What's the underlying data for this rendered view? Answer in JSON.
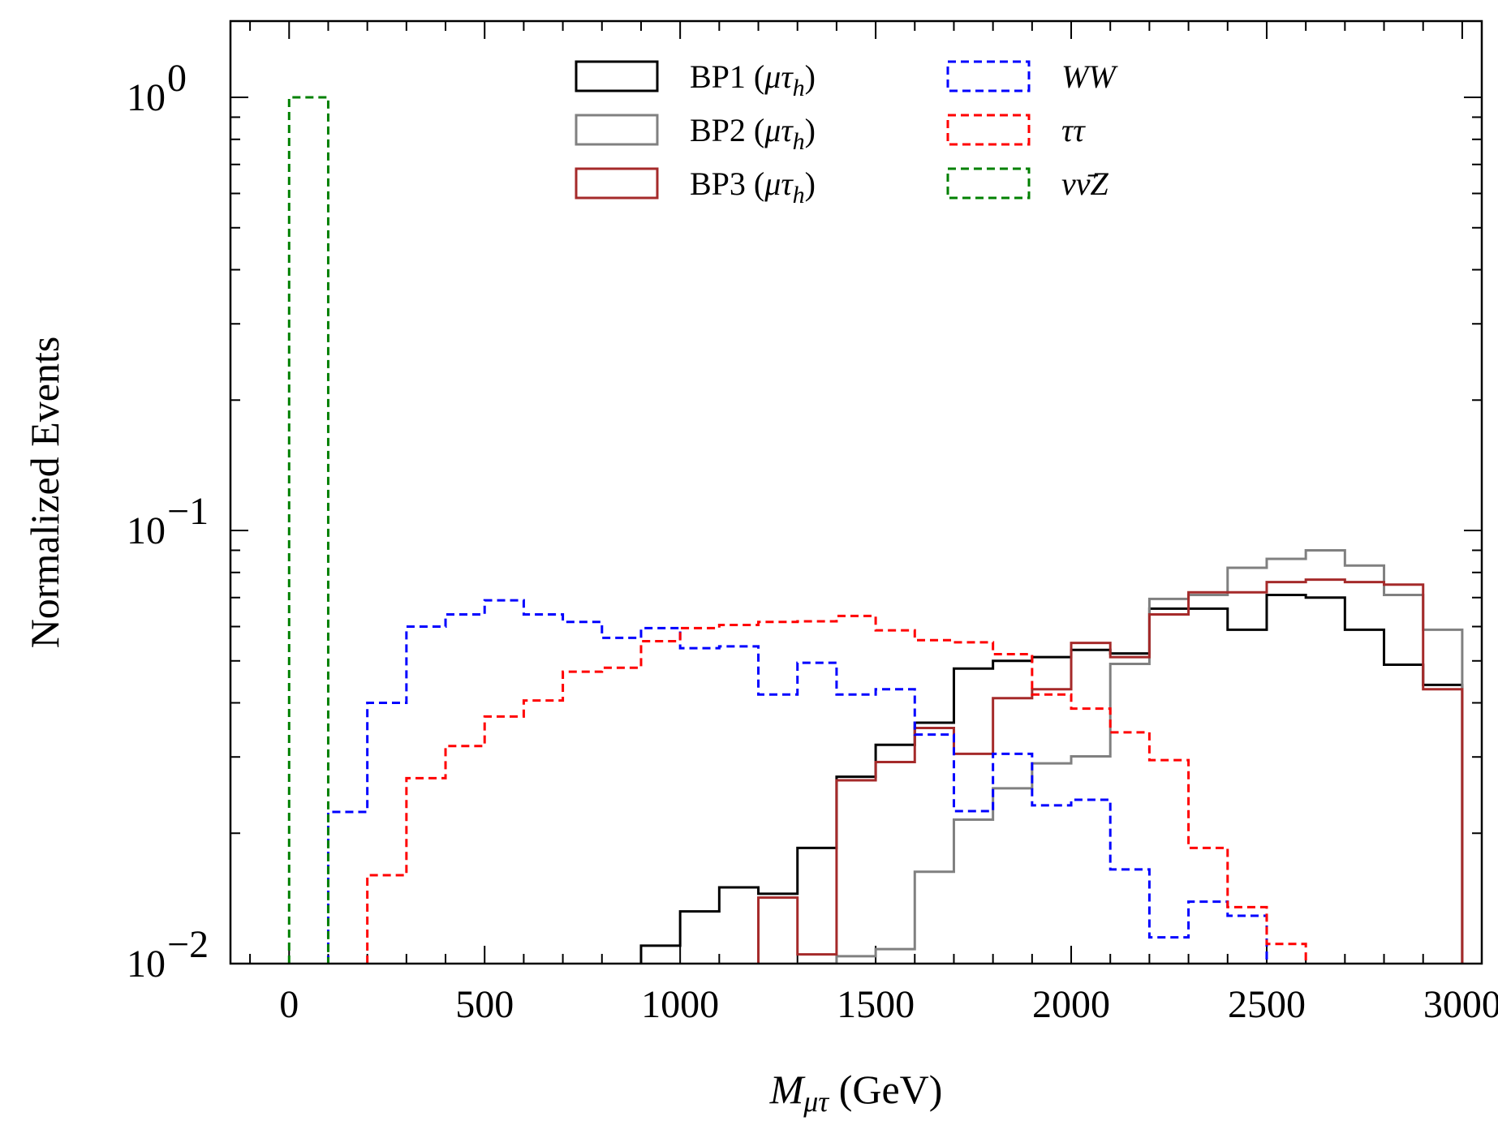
{
  "chart_data": {
    "type": "histogram",
    "xlabel": "M",
    "xlabel_subscript": "μτ",
    "xlabel_unit": " (GeV)",
    "ylabel": "Normalized Events",
    "xlim": [
      -150,
      3050
    ],
    "ylim": [
      0.01,
      1.5
    ],
    "yscale": "log",
    "grid": false,
    "legend_position": "top-center",
    "x_ticks": [
      "0",
      "500",
      "1000",
      "1500",
      "2000",
      "2500",
      "3000"
    ],
    "x_tick_values": [
      0,
      500,
      1000,
      1500,
      2000,
      2500,
      3000
    ],
    "y_ticks": [
      {
        "value": 1,
        "base": "10",
        "exp": "0"
      },
      {
        "value": 0.1,
        "base": "10",
        "exp": "−1"
      },
      {
        "value": 0.01,
        "base": "10",
        "exp": "−2"
      }
    ],
    "bin_edges": [
      0,
      100,
      200,
      300,
      400,
      500,
      600,
      700,
      800,
      900,
      1000,
      1100,
      1200,
      1300,
      1400,
      1500,
      1600,
      1700,
      1800,
      1900,
      2000,
      2100,
      2200,
      2300,
      2400,
      2500,
      2600,
      2700,
      2800,
      2900,
      3000
    ],
    "series": [
      {
        "key": "bp1",
        "name": "BP1 (",
        "name_math": "μτ",
        "name_sub": "h",
        "name_end": ")",
        "color": "#000000",
        "dashed": false,
        "values": [
          0,
          0,
          0,
          0,
          0,
          0,
          0,
          0,
          0,
          0.011,
          0.0132,
          0.015,
          0.0145,
          0.0185,
          0.027,
          0.032,
          0.036,
          0.048,
          0.05,
          0.051,
          0.053,
          0.052,
          0.066,
          0.066,
          0.059,
          0.071,
          0.07,
          0.059,
          0.049,
          0.044
        ]
      },
      {
        "key": "bp2",
        "name": "BP2 (",
        "name_math": "μτ",
        "name_sub": "h",
        "name_end": ")",
        "color": "#808080",
        "dashed": false,
        "values": [
          0,
          0,
          0,
          0,
          0,
          0,
          0,
          0,
          0,
          0,
          0,
          0,
          0,
          0.0095,
          0.0104,
          0.0108,
          0.0163,
          0.0215,
          0.0254,
          0.029,
          0.0301,
          0.0492,
          0.0695,
          0.071,
          0.082,
          0.086,
          0.09,
          0.083,
          0.071,
          0.059
        ]
      },
      {
        "key": "bp3",
        "name": "BP3 (",
        "name_math": "μτ",
        "name_sub": "h",
        "name_end": ")",
        "color": "#a52a2a",
        "dashed": false,
        "values": [
          0,
          0,
          0,
          0,
          0,
          0,
          0,
          0,
          0,
          0,
          0,
          0,
          0.0142,
          0.0105,
          0.0265,
          0.0292,
          0.035,
          0.0305,
          0.041,
          0.043,
          0.055,
          0.051,
          0.064,
          0.072,
          0.072,
          0.076,
          0.077,
          0.076,
          0.075,
          0.043
        ]
      },
      {
        "key": "ww",
        "name": "WW",
        "color": "#0000ff",
        "dashed": true,
        "values": [
          0,
          0.0224,
          0.04,
          0.06,
          0.064,
          0.069,
          0.064,
          0.0615,
          0.0565,
          0.0595,
          0.0535,
          0.054,
          0.0418,
          0.0495,
          0.0418,
          0.043,
          0.0338,
          0.0225,
          0.0305,
          0.0232,
          0.0239,
          0.0165,
          0.0115,
          0.0139,
          0.0129,
          0.0,
          0.0,
          0.0,
          0.0,
          0.0
        ]
      },
      {
        "key": "tautau",
        "name": "ττ",
        "color": "#ff0000",
        "dashed": true,
        "values": [
          0,
          0,
          0.016,
          0.0268,
          0.0318,
          0.0372,
          0.0405,
          0.0472,
          0.0482,
          0.0555,
          0.0595,
          0.0605,
          0.0615,
          0.0617,
          0.0635,
          0.0588,
          0.0558,
          0.0552,
          0.0518,
          0.0418,
          0.0388,
          0.0342,
          0.0295,
          0.0185,
          0.0135,
          0.0111,
          0.0,
          0.0,
          0.0,
          0.0
        ]
      },
      {
        "key": "vvz",
        "name": "νν̄Z",
        "color": "#008000",
        "dashed": true,
        "values": [
          1.0,
          0,
          0,
          0,
          0,
          0,
          0,
          0,
          0,
          0,
          0,
          0,
          0,
          0,
          0,
          0,
          0,
          0,
          0,
          0,
          0,
          0,
          0,
          0,
          0,
          0,
          0,
          0,
          0,
          0
        ]
      }
    ]
  }
}
